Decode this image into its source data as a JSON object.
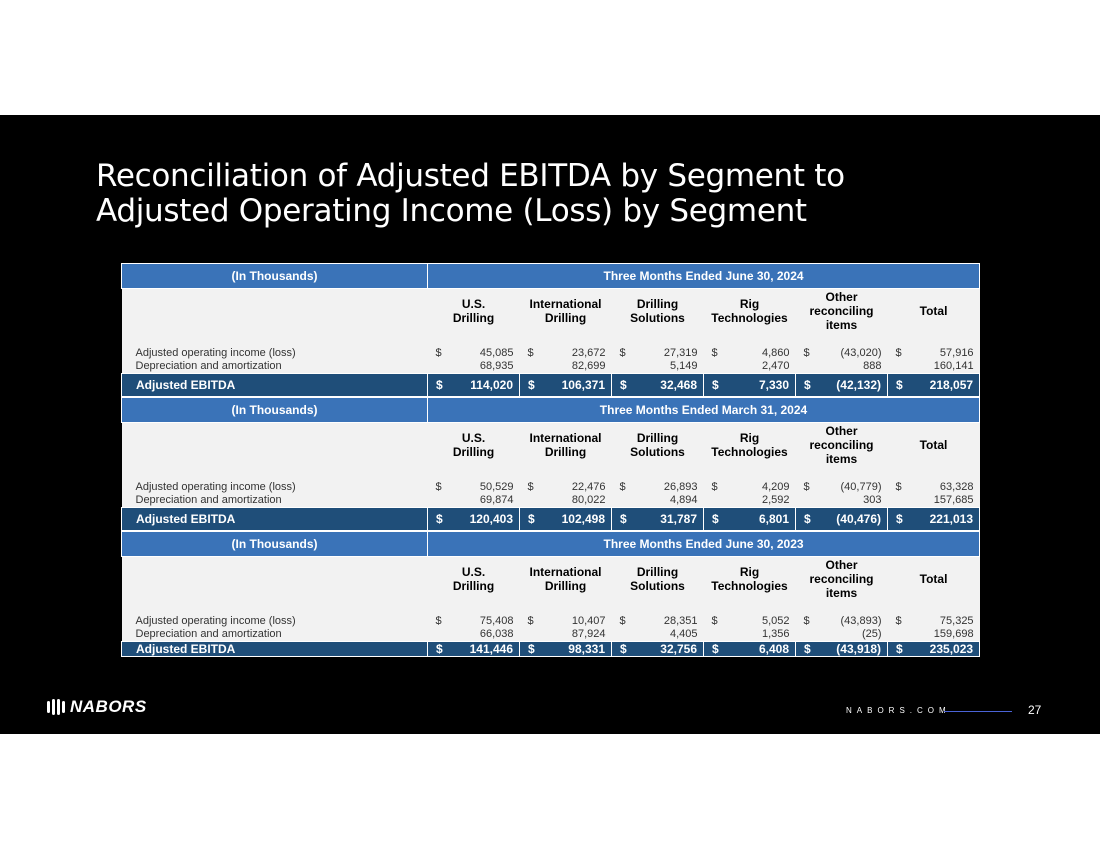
{
  "title": {
    "line1": "Reconciliation of Adjusted EBITDA by Segment to",
    "line2": "Adjusted Operating Income (Loss) by Segment"
  },
  "tables": [
    {
      "units_label": "(In Thousands)",
      "period": "Three Months Ended June 30, 2024",
      "columns": [
        [
          "U.S.",
          "Drilling"
        ],
        [
          "International",
          "Drilling"
        ],
        [
          "Drilling",
          "Solutions"
        ],
        [
          "Rig",
          "Technologies"
        ],
        [
          "Other",
          "reconciling",
          "items"
        ],
        [
          "Total"
        ]
      ],
      "rows": [
        {
          "label": "Adjusted operating income (loss)",
          "currency": "$",
          "values": [
            "45,085",
            "23,672",
            "27,319",
            "4,860",
            "(43,020)",
            "57,916"
          ]
        },
        {
          "label": "Depreciation and amortization",
          "currency": "",
          "values": [
            "68,935",
            "82,699",
            "5,149",
            "2,470",
            "888",
            "160,141"
          ]
        }
      ],
      "total": {
        "label": "Adjusted EBITDA",
        "currency": "$",
        "values": [
          "114,020",
          "106,371",
          "32,468",
          "7,330",
          "(42,132)",
          "218,057"
        ]
      }
    },
    {
      "units_label": "(In Thousands)",
      "period": "Three Months Ended March 31, 2024",
      "columns": [
        [
          "U.S.",
          "Drilling"
        ],
        [
          "International",
          "Drilling"
        ],
        [
          "Drilling",
          "Solutions"
        ],
        [
          "Rig",
          "Technologies"
        ],
        [
          "Other",
          "reconciling",
          "items"
        ],
        [
          "Total"
        ]
      ],
      "rows": [
        {
          "label": "Adjusted operating income (loss)",
          "currency": "$",
          "values": [
            "50,529",
            "22,476",
            "26,893",
            "4,209",
            "(40,779)",
            "63,328"
          ]
        },
        {
          "label": "Depreciation and amortization",
          "currency": "",
          "values": [
            "69,874",
            "80,022",
            "4,894",
            "2,592",
            "303",
            "157,685"
          ]
        }
      ],
      "total": {
        "label": "Adjusted EBITDA",
        "currency": "$",
        "values": [
          "120,403",
          "102,498",
          "31,787",
          "6,801",
          "(40,476)",
          "221,013"
        ]
      }
    },
    {
      "units_label": "(In Thousands)",
      "period": "Three Months Ended June 30, 2023",
      "columns": [
        [
          "U.S.",
          "Drilling"
        ],
        [
          "International",
          "Drilling"
        ],
        [
          "Drilling",
          "Solutions"
        ],
        [
          "Rig",
          "Technologies"
        ],
        [
          "Other",
          "reconciling",
          "items"
        ],
        [
          "Total"
        ]
      ],
      "rows": [
        {
          "label": "Adjusted operating income (loss)",
          "currency": "$",
          "values": [
            "75,408",
            "10,407",
            "28,351",
            "5,052",
            "(43,893)",
            "75,325"
          ]
        },
        {
          "label": "Depreciation and amortization",
          "currency": "",
          "values": [
            "66,038",
            "87,924",
            "4,405",
            "1,356",
            "(25)",
            "159,698"
          ]
        }
      ],
      "total": {
        "label": "Adjusted EBITDA",
        "currency": "$",
        "values": [
          "141,446",
          "98,331",
          "32,756",
          "6,408",
          "(43,918)",
          "235,023"
        ]
      }
    }
  ],
  "footer": {
    "logo_text": "NABORS",
    "logo_icon": "nabors-logo-icon",
    "url": "NABORS.COM",
    "page_number": "27"
  },
  "colors": {
    "header_band": "#3a73b8",
    "total_band": "#1f4e79",
    "table_body": "#f2f2f2",
    "slide_background": "#000000",
    "footer_rule": "#4a63d6"
  }
}
